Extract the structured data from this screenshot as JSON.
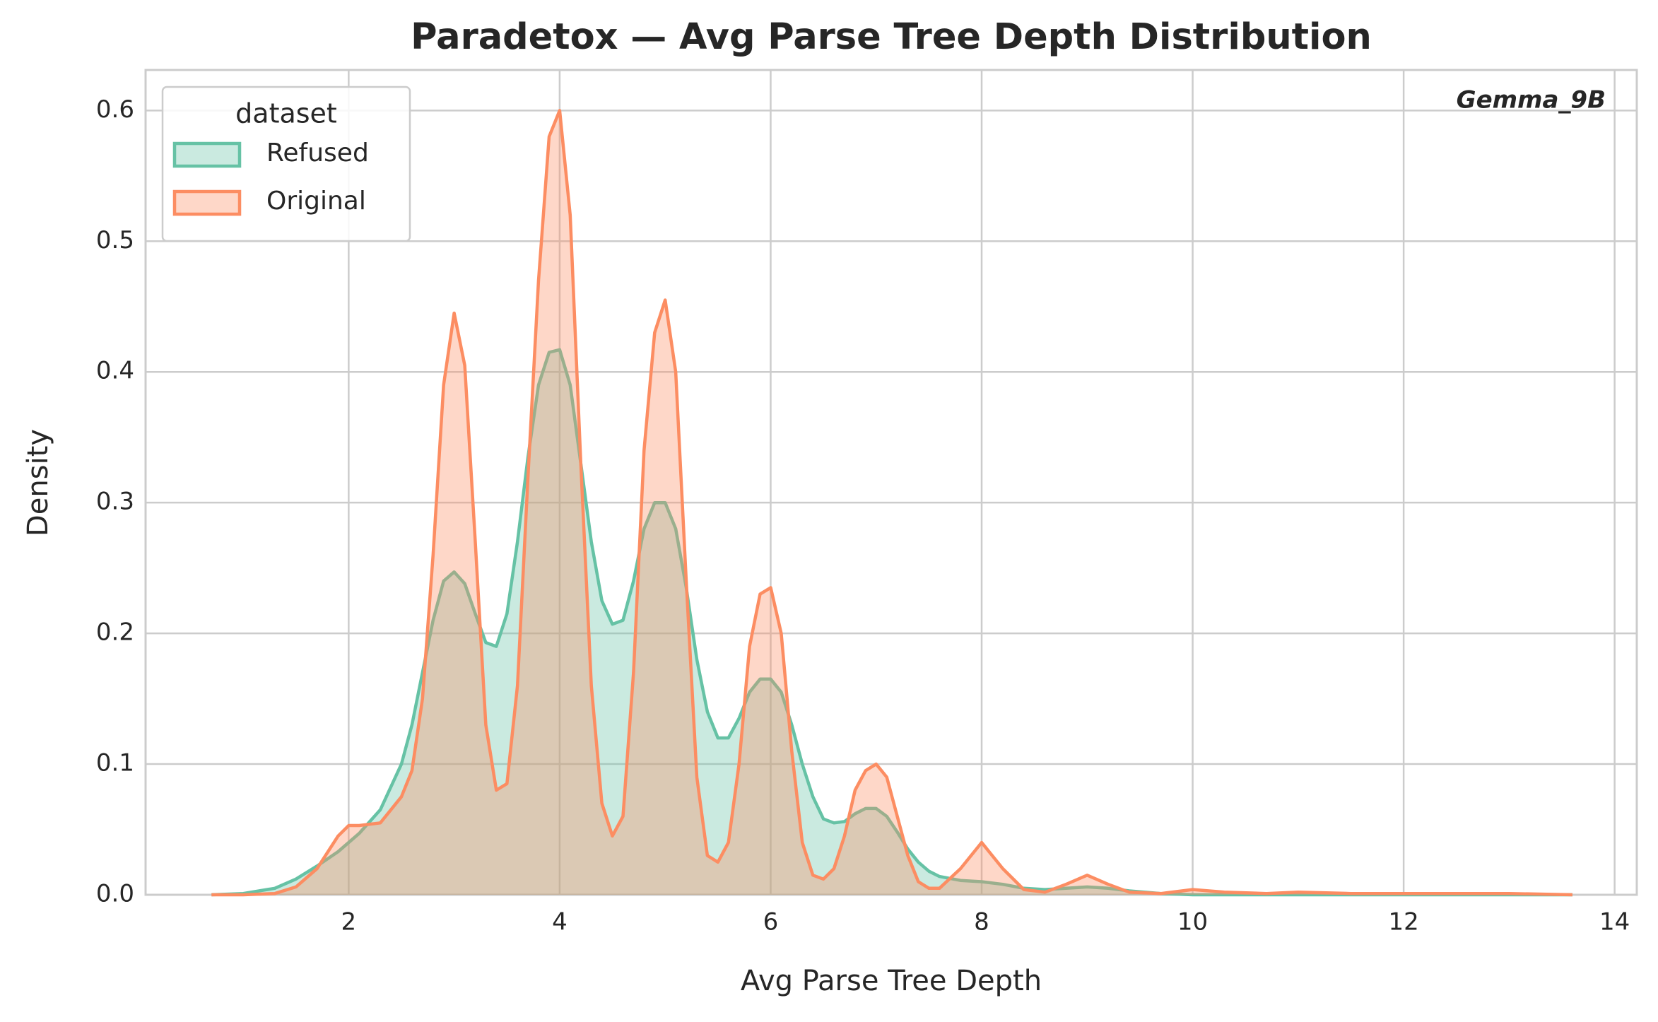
{
  "chart_data": {
    "type": "kde",
    "title": "Paradetox — Avg Parse Tree Depth Distribution",
    "xlabel": "Avg Parse Tree Depth",
    "ylabel": "Density",
    "annotation": "Gemma_9B",
    "legend_title": "dataset",
    "legend": "upper left",
    "grid": true,
    "x": [
      0.7,
      1.0,
      1.3,
      1.5,
      1.7,
      1.9,
      2.0,
      2.1,
      2.3,
      2.5,
      2.6,
      2.7,
      2.8,
      2.9,
      3.0,
      3.1,
      3.2,
      3.3,
      3.4,
      3.5,
      3.6,
      3.7,
      3.8,
      3.9,
      4.0,
      4.1,
      4.2,
      4.3,
      4.4,
      4.5,
      4.6,
      4.7,
      4.8,
      4.9,
      5.0,
      5.1,
      5.2,
      5.3,
      5.4,
      5.5,
      5.6,
      5.7,
      5.8,
      5.9,
      6.0,
      6.1,
      6.2,
      6.3,
      6.4,
      6.5,
      6.6,
      6.7,
      6.8,
      6.9,
      7.0,
      7.1,
      7.2,
      7.3,
      7.4,
      7.5,
      7.6,
      7.8,
      8.0,
      8.2,
      8.4,
      8.6,
      8.8,
      9.0,
      9.2,
      9.4,
      9.7,
      10.0,
      10.3,
      10.7,
      11.0,
      11.5,
      12,
      12.5,
      13,
      13.6
    ],
    "series": [
      {
        "name": "Refused",
        "color": "#66c2a5",
        "values": [
          0,
          0.001,
          0.005,
          0.012,
          0.022,
          0.033,
          0.04,
          0.047,
          0.065,
          0.1,
          0.13,
          0.17,
          0.21,
          0.24,
          0.247,
          0.238,
          0.215,
          0.193,
          0.19,
          0.215,
          0.27,
          0.335,
          0.39,
          0.415,
          0.417,
          0.39,
          0.33,
          0.27,
          0.225,
          0.207,
          0.21,
          0.24,
          0.28,
          0.3,
          0.3,
          0.28,
          0.235,
          0.18,
          0.14,
          0.12,
          0.12,
          0.135,
          0.155,
          0.165,
          0.165,
          0.155,
          0.13,
          0.1,
          0.075,
          0.058,
          0.055,
          0.056,
          0.062,
          0.066,
          0.066,
          0.06,
          0.048,
          0.035,
          0.025,
          0.018,
          0.014,
          0.011,
          0.01,
          0.008,
          0.005,
          0.004,
          0.005,
          0.006,
          0.005,
          0.003,
          0.001,
          0,
          0,
          0,
          0,
          0,
          0,
          0,
          0,
          0
        ]
      },
      {
        "name": "Original",
        "color": "#fc8d62",
        "values": [
          0,
          0,
          0.001,
          0.006,
          0.02,
          0.045,
          0.053,
          0.053,
          0.055,
          0.075,
          0.095,
          0.15,
          0.26,
          0.39,
          0.445,
          0.405,
          0.27,
          0.13,
          0.08,
          0.085,
          0.16,
          0.32,
          0.47,
          0.58,
          0.6,
          0.52,
          0.33,
          0.16,
          0.07,
          0.045,
          0.06,
          0.17,
          0.34,
          0.43,
          0.455,
          0.4,
          0.24,
          0.09,
          0.03,
          0.025,
          0.04,
          0.1,
          0.19,
          0.23,
          0.235,
          0.2,
          0.11,
          0.04,
          0.015,
          0.012,
          0.02,
          0.045,
          0.08,
          0.095,
          0.1,
          0.09,
          0.06,
          0.03,
          0.01,
          0.005,
          0.005,
          0.02,
          0.04,
          0.02,
          0.004,
          0.002,
          0.008,
          0.015,
          0.008,
          0.002,
          0.001,
          0.004,
          0.002,
          0.001,
          0.002,
          0.001,
          0.001,
          0.001,
          0.001,
          0
        ]
      }
    ],
    "xlim": [
      0.075,
      14.21
    ],
    "xticks": [
      2,
      4,
      6,
      8,
      10,
      12,
      14
    ],
    "ylim": [
      0,
      0.631
    ],
    "yticks": [
      {
        "value": 0,
        "label": "0.0"
      },
      {
        "value": 0.1,
        "label": "0.1"
      },
      {
        "value": 0.2,
        "label": "0.2"
      },
      {
        "value": 0.3,
        "label": "0.3"
      },
      {
        "value": 0.4,
        "label": "0.4"
      },
      {
        "value": 0.5,
        "label": "0.5"
      },
      {
        "value": 0.6,
        "label": "0.6"
      }
    ]
  }
}
